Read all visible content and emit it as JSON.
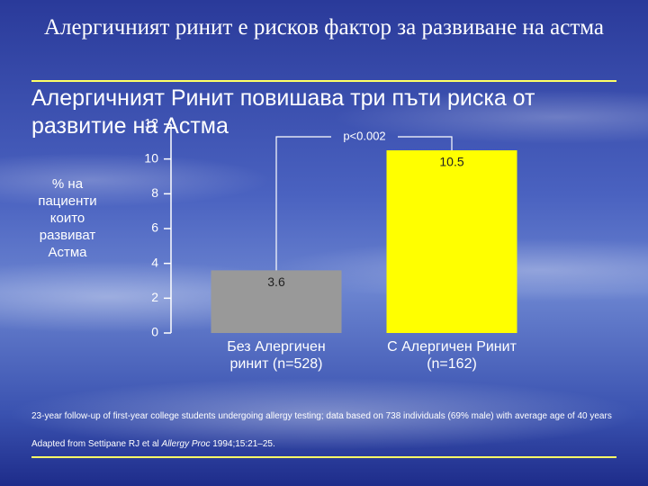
{
  "chart_data": {
    "type": "bar",
    "title": "Алергичният ринит е рисков фактор за развиване на астма",
    "subtitle": "Алергичният Ринит повишава три пъти риска от развитие на Астма",
    "y_label": "% на пациенти които развиват Астма",
    "categories": [
      "Без Алергичен ринит (n=528)",
      "С Алергичен Ринит (n=162)"
    ],
    "values": [
      3.6,
      10.5
    ],
    "colors": [
      "#999999",
      "#ffff00"
    ],
    "ylim": [
      0,
      12
    ],
    "yticks": [
      0,
      2,
      4,
      6,
      8,
      10,
      12
    ],
    "annotation": "p<0.002",
    "notes": [
      "23-year follow-up of first-year college students undergoing allergy testing; data based on 738 individuals (69% male) with average age of 40 years"
    ],
    "source": [
      "Adapted from Settipane RJ et al ",
      "Allergy Proc",
      " 1994;15:21–25."
    ]
  }
}
